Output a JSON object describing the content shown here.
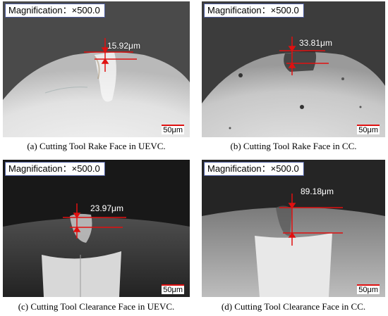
{
  "panels": [
    {
      "magnification": "Magnification：×500.0",
      "measurement": "15.92μm",
      "scale": "50μm",
      "caption": "(a) Cutting Tool Rake Face in UEVC."
    },
    {
      "magnification": "Magnification：×500.0",
      "measurement": "33.81μm",
      "scale": "50μm",
      "caption": "(b) Cutting Tool Rake Face in CC."
    },
    {
      "magnification": "Magnification：×500.0",
      "measurement": "23.97μm",
      "scale": "50μm",
      "caption": "(c) Cutting Tool Clearance Face in UEVC."
    },
    {
      "magnification": "Magnification：×500.0",
      "measurement": "89.18μm",
      "scale": "50μm",
      "caption": "(d) Cutting Tool Clearance Face in CC."
    }
  ],
  "colors": {
    "annotation_red": "#e01010",
    "label_border": "#4b5a9a"
  }
}
